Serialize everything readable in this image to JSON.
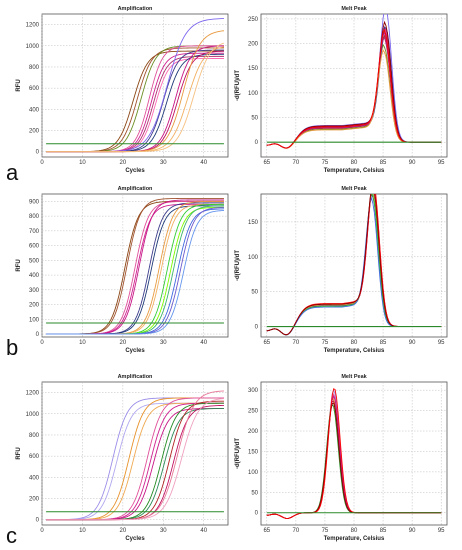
{
  "panel_labels": [
    "a",
    "b",
    "c"
  ],
  "chart_data": [
    {
      "id": "a-amp",
      "type": "line",
      "title": "Amplification",
      "xlabel": "Cycles",
      "ylabel": "RFU",
      "xlim": [
        0,
        46
      ],
      "ylim": [
        -50,
        1300
      ],
      "xticks": [
        0,
        10,
        20,
        30,
        40
      ],
      "yticks": [
        0,
        200,
        400,
        600,
        800,
        1000,
        1200
      ],
      "grid": true,
      "threshold": 75,
      "curve_model": "sigmoid",
      "series": [
        {
          "color": "#8b4513",
          "values": {
            "midpoint": 22.5,
            "plateau": 950,
            "slope": 1.0
          }
        },
        {
          "color": "#a0522d",
          "values": {
            "midpoint": 23.5,
            "plateau": 980,
            "slope": 1.0
          }
        },
        {
          "color": "#6b8e23",
          "values": {
            "midpoint": 24.5,
            "plateau": 1000,
            "slope": 1.0
          }
        },
        {
          "color": "#e0509a",
          "values": {
            "midpoint": 26.5,
            "plateau": 1000,
            "slope": 1.1
          }
        },
        {
          "color": "#d02090",
          "values": {
            "midpoint": 27.0,
            "plateau": 930,
            "slope": 1.1
          }
        },
        {
          "color": "#b03070",
          "values": {
            "midpoint": 27.5,
            "plateau": 900,
            "slope": 1.1
          }
        },
        {
          "color": "#ff69b4",
          "values": {
            "midpoint": 28.0,
            "plateau": 880,
            "slope": 1.1
          }
        },
        {
          "color": "#3c3c8c",
          "values": {
            "midpoint": 30.0,
            "plateau": 960,
            "slope": 1.0
          }
        },
        {
          "color": "#1e3a78",
          "values": {
            "midpoint": 30.8,
            "plateau": 920,
            "slope": 1.0
          }
        },
        {
          "color": "#7b68ee",
          "values": {
            "midpoint": 31.0,
            "plateau": 1260,
            "slope": 0.8
          }
        },
        {
          "color": "#c71585",
          "values": {
            "midpoint": 33.0,
            "plateau": 1000,
            "slope": 1.0
          }
        },
        {
          "color": "#c01060",
          "values": {
            "midpoint": 33.5,
            "plateau": 950,
            "slope": 1.0
          }
        },
        {
          "color": "#e89a40",
          "values": {
            "midpoint": 35.0,
            "plateau": 1150,
            "slope": 0.9
          }
        },
        {
          "color": "#f2b060",
          "values": {
            "midpoint": 36.0,
            "plateau": 1000,
            "slope": 0.9
          }
        },
        {
          "color": "#f5c080",
          "values": {
            "midpoint": 37.5,
            "plateau": 1050,
            "slope": 0.9
          }
        }
      ]
    },
    {
      "id": "a-melt",
      "type": "line",
      "title": "Melt Peak",
      "xlabel": "Temperature, Celsius",
      "ylabel": "-d(RFU)/dT",
      "xlim": [
        64,
        96
      ],
      "ylim": [
        -30,
        260
      ],
      "xticks": [
        65,
        70,
        75,
        80,
        85,
        90,
        95
      ],
      "yticks": [
        0,
        50,
        100,
        150,
        200,
        250
      ],
      "grid": true,
      "threshold": 0,
      "curve_model": "melt",
      "series": [
        {
          "color": "#8b4513",
          "values": {
            "peak_temp": 85.3,
            "height": 190,
            "shoulder": 28
          }
        },
        {
          "color": "#a0522d",
          "values": {
            "peak_temp": 85.4,
            "height": 200,
            "shoulder": 30
          }
        },
        {
          "color": "#6b8e23",
          "values": {
            "peak_temp": 85.2,
            "height": 175,
            "shoulder": 26
          }
        },
        {
          "color": "#d02090",
          "values": {
            "peak_temp": 85.4,
            "height": 205,
            "shoulder": 32
          }
        },
        {
          "color": "#b03070",
          "values": {
            "peak_temp": 85.3,
            "height": 185,
            "shoulder": 30
          }
        },
        {
          "color": "#3c3c8c",
          "values": {
            "peak_temp": 85.5,
            "height": 210,
            "shoulder": 30
          }
        },
        {
          "color": "#7b68ee",
          "values": {
            "peak_temp": 85.5,
            "height": 245,
            "shoulder": 34
          }
        },
        {
          "color": "#c71585",
          "values": {
            "peak_temp": 85.3,
            "height": 195,
            "shoulder": 29
          }
        },
        {
          "color": "#e89a40",
          "values": {
            "peak_temp": 85.2,
            "height": 165,
            "shoulder": 25
          }
        },
        {
          "color": "#8b0000",
          "values": {
            "peak_temp": 85.4,
            "height": 215,
            "shoulder": 33
          }
        },
        {
          "color": "#ff0000",
          "values": {
            "peak_temp": 85.3,
            "height": 200,
            "shoulder": 31
          }
        }
      ]
    },
    {
      "id": "b-amp",
      "type": "line",
      "title": "Amplification",
      "xlabel": "Cycles",
      "ylabel": "RFU",
      "xlim": [
        0,
        46
      ],
      "ylim": [
        -20,
        950
      ],
      "xticks": [
        0,
        10,
        20,
        30,
        40
      ],
      "yticks": [
        0,
        100,
        200,
        300,
        400,
        500,
        600,
        700,
        800,
        900
      ],
      "grid": true,
      "threshold": 75,
      "curve_model": "sigmoid",
      "series": [
        {
          "color": "#8b4513",
          "values": {
            "midpoint": 20.5,
            "plateau": 900,
            "slope": 1.1
          }
        },
        {
          "color": "#a0522d",
          "values": {
            "midpoint": 21.0,
            "plateau": 920,
            "slope": 1.1
          }
        },
        {
          "color": "#e0509a",
          "values": {
            "midpoint": 23.0,
            "plateau": 900,
            "slope": 1.1
          }
        },
        {
          "color": "#d02090",
          "values": {
            "midpoint": 23.5,
            "plateau": 880,
            "slope": 1.1
          }
        },
        {
          "color": "#c71585",
          "values": {
            "midpoint": 24.0,
            "plateau": 910,
            "slope": 1.1
          }
        },
        {
          "color": "#3c3c8c",
          "values": {
            "midpoint": 26.5,
            "plateau": 890,
            "slope": 1.1
          }
        },
        {
          "color": "#1e3a78",
          "values": {
            "midpoint": 27.0,
            "plateau": 870,
            "slope": 1.1
          }
        },
        {
          "color": "#e89a40",
          "values": {
            "midpoint": 29.0,
            "plateau": 900,
            "slope": 1.1
          }
        },
        {
          "color": "#f2b060",
          "values": {
            "midpoint": 29.5,
            "plateau": 880,
            "slope": 1.1
          }
        },
        {
          "color": "#32cd32",
          "values": {
            "midpoint": 31.0,
            "plateau": 880,
            "slope": 1.1
          }
        },
        {
          "color": "#7cfc00",
          "values": {
            "midpoint": 31.8,
            "plateau": 860,
            "slope": 1.1
          }
        },
        {
          "color": "#3cb371",
          "values": {
            "midpoint": 32.5,
            "plateau": 870,
            "slope": 1.1
          }
        },
        {
          "color": "#4169e1",
          "values": {
            "midpoint": 33.5,
            "plateau": 850,
            "slope": 1.1
          }
        },
        {
          "color": "#6a5acd",
          "values": {
            "midpoint": 34.2,
            "plateau": 860,
            "slope": 1.1
          }
        },
        {
          "color": "#6495ed",
          "values": {
            "midpoint": 35.0,
            "plateau": 840,
            "slope": 1.1
          }
        }
      ]
    },
    {
      "id": "b-melt",
      "type": "line",
      "title": "Melt Peak",
      "xlabel": "Temperature, Celsius",
      "ylabel": "-d(RFU)/dT",
      "xlim": [
        64,
        96
      ],
      "ylim": [
        -15,
        190
      ],
      "xticks": [
        65,
        70,
        75,
        80,
        85,
        90,
        95
      ],
      "yticks": [
        0,
        50,
        100,
        150
      ],
      "grid": true,
      "threshold": 0,
      "curve_model": "melt",
      "series": [
        {
          "color": "#8b4513",
          "values": {
            "peak_temp": 83.3,
            "height": 170,
            "shoulder": 30
          }
        },
        {
          "color": "#d02090",
          "values": {
            "peak_temp": 83.4,
            "height": 178,
            "shoulder": 32
          }
        },
        {
          "color": "#c71585",
          "values": {
            "peak_temp": 83.3,
            "height": 175,
            "shoulder": 31
          }
        },
        {
          "color": "#3c3c8c",
          "values": {
            "peak_temp": 83.2,
            "height": 165,
            "shoulder": 30
          }
        },
        {
          "color": "#e89a40",
          "values": {
            "peak_temp": 83.3,
            "height": 172,
            "shoulder": 31
          }
        },
        {
          "color": "#32cd32",
          "values": {
            "peak_temp": 83.2,
            "height": 168,
            "shoulder": 29
          }
        },
        {
          "color": "#4169e1",
          "values": {
            "peak_temp": 83.1,
            "height": 160,
            "shoulder": 28
          }
        },
        {
          "color": "#ff0000",
          "values": {
            "peak_temp": 83.4,
            "height": 180,
            "shoulder": 33
          }
        },
        {
          "color": "#8b0000",
          "values": {
            "peak_temp": 83.3,
            "height": 176,
            "shoulder": 32
          }
        }
      ]
    },
    {
      "id": "c-amp",
      "type": "line",
      "title": "Amplification",
      "xlabel": "Cycles",
      "ylabel": "RFU",
      "xlim": [
        0,
        46
      ],
      "ylim": [
        -50,
        1300
      ],
      "xticks": [
        0,
        10,
        20,
        30,
        40
      ],
      "yticks": [
        0,
        200,
        400,
        600,
        800,
        1000,
        1200
      ],
      "grid": true,
      "threshold": 75,
      "curve_model": "sigmoid",
      "series": [
        {
          "color": "#9a8ee8",
          "values": {
            "midpoint": 17.5,
            "plateau": 1150,
            "slope": 1.0
          }
        },
        {
          "color": "#b0a8f0",
          "values": {
            "midpoint": 18.5,
            "plateau": 1100,
            "slope": 1.0
          }
        },
        {
          "color": "#e8922a",
          "values": {
            "midpoint": 21.5,
            "plateau": 1150,
            "slope": 1.0
          }
        },
        {
          "color": "#f0a850",
          "values": {
            "midpoint": 22.5,
            "plateau": 1100,
            "slope": 1.0
          }
        },
        {
          "color": "#e0509a",
          "values": {
            "midpoint": 26.0,
            "plateau": 1150,
            "slope": 1.0
          }
        },
        {
          "color": "#d02090",
          "values": {
            "midpoint": 26.8,
            "plateau": 1100,
            "slope": 1.0
          }
        },
        {
          "color": "#c71585",
          "values": {
            "midpoint": 27.5,
            "plateau": 1050,
            "slope": 1.0
          }
        },
        {
          "color": "#228b22",
          "values": {
            "midpoint": 29.5,
            "plateau": 1100,
            "slope": 1.0
          }
        },
        {
          "color": "#2e8b57",
          "values": {
            "midpoint": 30.2,
            "plateau": 1050,
            "slope": 1.0
          }
        },
        {
          "color": "#b22222",
          "values": {
            "midpoint": 31.5,
            "plateau": 1120,
            "slope": 1.0
          }
        },
        {
          "color": "#c01060",
          "values": {
            "midpoint": 32.5,
            "plateau": 1080,
            "slope": 1.0
          }
        },
        {
          "color": "#e87898",
          "values": {
            "midpoint": 33.5,
            "plateau": 1220,
            "slope": 0.9
          }
        },
        {
          "color": "#f0a0c0",
          "values": {
            "midpoint": 34.5,
            "plateau": 1150,
            "slope": 0.9
          }
        }
      ]
    },
    {
      "id": "c-melt",
      "type": "line",
      "title": "Melt Peak",
      "xlabel": "Temperature, Celsius",
      "ylabel": "-d(RFU)/dT",
      "xlim": [
        64,
        96
      ],
      "ylim": [
        -30,
        320
      ],
      "xticks": [
        65,
        70,
        75,
        80,
        85,
        90,
        95
      ],
      "yticks": [
        0,
        50,
        100,
        150,
        200,
        250,
        300
      ],
      "grid": true,
      "threshold": 0,
      "curve_model": "melt",
      "series": [
        {
          "color": "#9a8ee8",
          "values": {
            "peak_temp": 76.5,
            "height": 300,
            "shoulder": 0
          }
        },
        {
          "color": "#e8922a",
          "values": {
            "peak_temp": 76.4,
            "height": 280,
            "shoulder": 0
          }
        },
        {
          "color": "#e0509a",
          "values": {
            "peak_temp": 76.5,
            "height": 290,
            "shoulder": 0
          }
        },
        {
          "color": "#228b22",
          "values": {
            "peak_temp": 76.3,
            "height": 265,
            "shoulder": 0
          }
        },
        {
          "color": "#b22222",
          "values": {
            "peak_temp": 76.4,
            "height": 275,
            "shoulder": 0
          }
        },
        {
          "color": "#c71585",
          "values": {
            "peak_temp": 76.5,
            "height": 285,
            "shoulder": 0
          }
        },
        {
          "color": "#8b0000",
          "values": {
            "peak_temp": 76.4,
            "height": 270,
            "shoulder": 0
          }
        },
        {
          "color": "#ff0000",
          "values": {
            "peak_temp": 76.6,
            "height": 305,
            "shoulder": 0
          }
        }
      ]
    }
  ]
}
